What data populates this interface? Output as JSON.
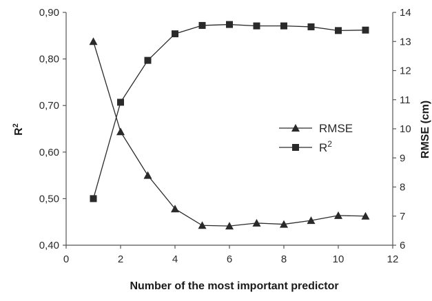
{
  "chart_data": {
    "type": "line",
    "xlabel": "Number of the most important predictor",
    "ylabel_left": "R",
    "ylabel_left_superscript": "2",
    "ylabel_right": "RMSE (cm)",
    "xlim": [
      0,
      12
    ],
    "xticks": [
      0,
      2,
      4,
      6,
      8,
      10,
      12
    ],
    "xtick_labels": [
      "0",
      "2",
      "4",
      "6",
      "8",
      "10",
      "12"
    ],
    "ylim_left": [
      0.4,
      0.9
    ],
    "yticks_left": [
      0.4,
      0.5,
      0.6,
      0.7,
      0.8,
      0.9
    ],
    "ytick_labels_left": [
      "0,40",
      "0,50",
      "0,60",
      "0,70",
      "0,80",
      "0,90"
    ],
    "ylim_right": [
      6,
      14
    ],
    "yticks_right": [
      6,
      7,
      8,
      9,
      10,
      11,
      12,
      13,
      14
    ],
    "ytick_labels_right": [
      "6",
      "7",
      "8",
      "9",
      "10",
      "11",
      "12",
      "13",
      "14"
    ],
    "grid": false,
    "legend_position": "center-right",
    "x": [
      1,
      2,
      3,
      4,
      5,
      6,
      7,
      8,
      9,
      10,
      11
    ],
    "series": [
      {
        "name": "RMSE",
        "axis": "right",
        "marker": "triangle",
        "values": [
          13.0,
          9.9,
          8.4,
          7.25,
          6.68,
          6.66,
          6.76,
          6.72,
          6.85,
          7.02,
          7.0
        ]
      },
      {
        "name": "R",
        "name_superscript": "2",
        "axis": "left",
        "marker": "square",
        "values": [
          0.5,
          0.707,
          0.797,
          0.854,
          0.872,
          0.874,
          0.871,
          0.871,
          0.869,
          0.861,
          0.862
        ]
      }
    ],
    "line_color": "#2a2a2a"
  }
}
